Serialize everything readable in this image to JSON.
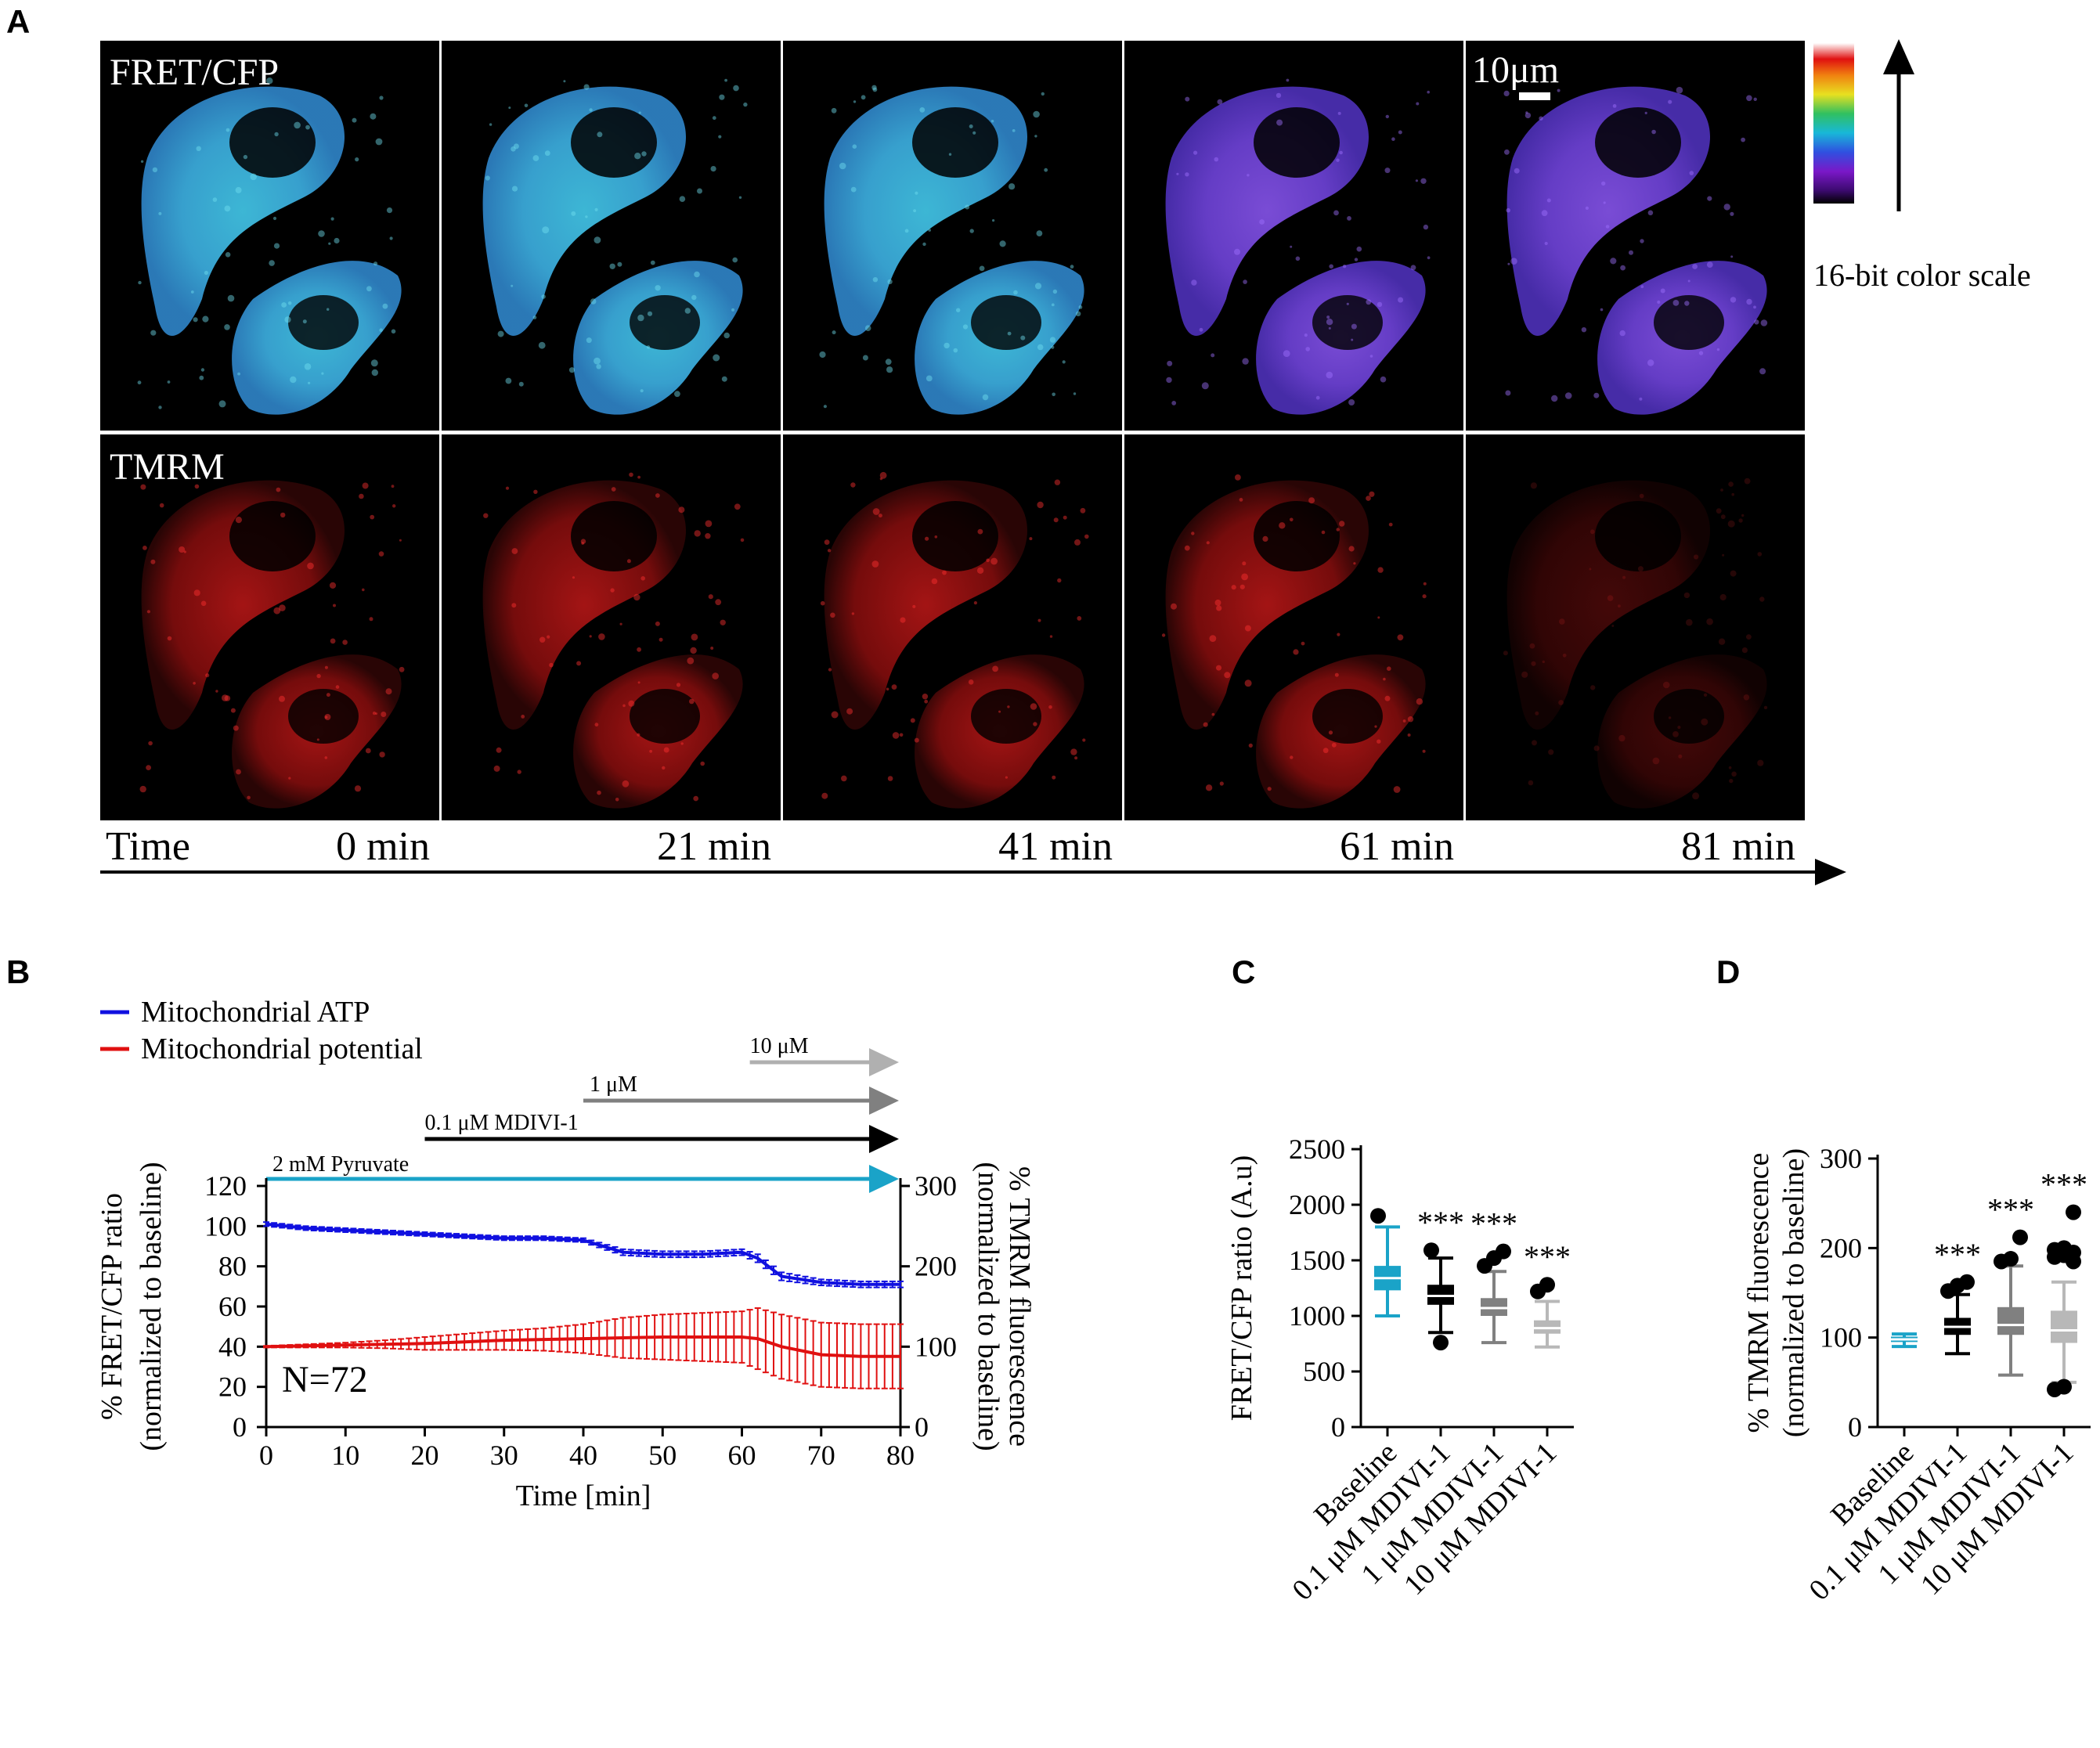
{
  "panel_a": {
    "letter": "A",
    "row_labels": [
      "FRET/CFP",
      "TMRM"
    ],
    "scale_bar_label": "10μm",
    "color_scale_label": "16-bit color scale",
    "time_label": "Time",
    "timepoints": [
      "0 min",
      "21 min",
      "41 min",
      "61 min",
      "81 min"
    ]
  },
  "panel_b": {
    "letter": "B",
    "legend": [
      {
        "label": "Mitochondrial ATP",
        "color": "#1010e0"
      },
      {
        "label": "Mitochondrial potential",
        "color": "#e01010"
      }
    ],
    "treatments": [
      {
        "label": "10 μM",
        "color": "#b0b0b0"
      },
      {
        "label": "1 μM",
        "color": "#808080"
      },
      {
        "label": "0.1 μM  MDIVI-1",
        "color": "#000000"
      },
      {
        "label": "2 mM Pyruvate",
        "color": "#1aa3c8"
      }
    ],
    "n_label": "N=72",
    "ylabel_left": [
      "% FRET/CFP ratio",
      "(normalized to baseline)"
    ],
    "ylabel_right": [
      "% TMRM fluorescence",
      "(normalized to baseline)"
    ],
    "xlabel": "Time [min]"
  },
  "panel_c": {
    "letter": "C",
    "ylabel": "FRET/CFP ratio (A.u)"
  },
  "panel_d": {
    "letter": "D",
    "ylabel": [
      "% TMRM fluorescence",
      "(normalized to baseline)"
    ]
  },
  "chart_data": [
    {
      "type": "line",
      "panel": "B",
      "x": [
        0,
        5,
        10,
        15,
        20,
        25,
        30,
        35,
        40,
        45,
        50,
        55,
        60,
        62,
        65,
        70,
        75,
        80
      ],
      "xlim": [
        0,
        80
      ],
      "xticks": [
        0,
        10,
        20,
        30,
        40,
        50,
        60,
        70,
        80
      ],
      "ylim_left": [
        0,
        120
      ],
      "yticks_left": [
        0,
        20,
        40,
        60,
        80,
        100,
        120
      ],
      "ylim_right": [
        0,
        300
      ],
      "yticks_right": [
        0,
        100,
        200,
        300
      ],
      "series": [
        {
          "name": "Mitochondrial ATP",
          "axis": "left",
          "color": "#1010e0",
          "values": [
            101,
            99,
            98,
            97,
            96,
            95,
            94,
            94,
            93,
            87,
            86,
            86,
            87,
            84,
            75,
            72,
            71,
            71
          ],
          "err": [
            1,
            1,
            1,
            1,
            1,
            1,
            1,
            1,
            1,
            1.5,
            1.5,
            1.5,
            1.5,
            2,
            2,
            1.5,
            1.5,
            1.5
          ]
        },
        {
          "name": "Mitochondrial potential",
          "axis": "right",
          "color": "#e01010",
          "values": [
            100,
            101,
            102,
            103,
            104,
            106,
            108,
            109,
            110,
            111,
            112,
            112,
            112,
            110,
            100,
            90,
            88,
            88
          ],
          "err": [
            1,
            2,
            3,
            5,
            8,
            10,
            12,
            14,
            18,
            25,
            28,
            30,
            32,
            38,
            40,
            40,
            40,
            40
          ]
        }
      ]
    },
    {
      "type": "box",
      "panel": "C",
      "categories": [
        "Baseline",
        "0.1 μM MDIVI-1",
        "1 μM MDIVI-1",
        "10 μM MDIVI-1"
      ],
      "colors": [
        "#1aa3c8",
        "#000000",
        "#808080",
        "#b8b8b8"
      ],
      "ylim": [
        0,
        2500
      ],
      "yticks": [
        0,
        500,
        1000,
        1500,
        2000,
        2500
      ],
      "boxes": [
        {
          "min": 1000,
          "q1": 1230,
          "median": 1340,
          "q3": 1450,
          "max": 1800,
          "outliers": [
            1900
          ],
          "sig": ""
        },
        {
          "min": 850,
          "q1": 1100,
          "median": 1180,
          "q3": 1280,
          "max": 1520,
          "outliers": [
            1590,
            760
          ],
          "sig": "***"
        },
        {
          "min": 760,
          "q1": 1000,
          "median": 1070,
          "q3": 1160,
          "max": 1400,
          "outliers": [
            1450,
            1520,
            1580
          ],
          "sig": "***"
        },
        {
          "min": 720,
          "q1": 840,
          "median": 890,
          "q3": 960,
          "max": 1130,
          "outliers": [
            1220,
            1280
          ],
          "sig": "***"
        }
      ]
    },
    {
      "type": "box",
      "panel": "D",
      "categories": [
        "Baseline",
        "0.1 μM MDIVI-1",
        "1 μM MDIVI-1",
        "10 μM MDIVI-1"
      ],
      "colors": [
        "#1aa3c8",
        "#000000",
        "#808080",
        "#b8b8b8"
      ],
      "ylim": [
        0,
        300
      ],
      "yticks": [
        0,
        100,
        200,
        300
      ],
      "boxes": [
        {
          "min": 90,
          "q1": 95,
          "median": 98,
          "q3": 101,
          "max": 104,
          "outliers": [],
          "sig": ""
        },
        {
          "min": 82,
          "q1": 103,
          "median": 112,
          "q3": 122,
          "max": 148,
          "outliers": [
            152,
            158,
            162
          ],
          "sig": "***"
        },
        {
          "min": 58,
          "q1": 103,
          "median": 114,
          "q3": 134,
          "max": 180,
          "outliers": [
            185,
            188,
            212
          ],
          "sig": "***"
        },
        {
          "min": 50,
          "q1": 94,
          "median": 108,
          "q3": 130,
          "max": 162,
          "outliers": [
            42,
            45,
            185,
            190,
            192,
            195,
            198,
            200,
            240
          ],
          "sig": "***"
        }
      ]
    }
  ]
}
